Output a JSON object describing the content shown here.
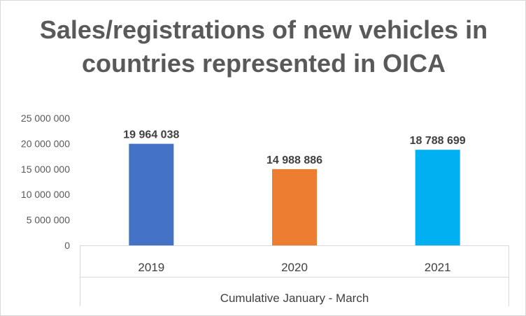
{
  "chart_data": {
    "type": "bar",
    "title_lines": [
      "Sales/registrations of new vehicles in",
      "countries represented in OICA"
    ],
    "categories": [
      "2019",
      "2020",
      "2021"
    ],
    "values": [
      19964038,
      14988886,
      18788699
    ],
    "data_labels": [
      "19 964 038",
      "14 988 886",
      "18 788 699"
    ],
    "bar_colors": [
      "#4472c4",
      "#ed7d31",
      "#00b0f0"
    ],
    "xlabel": "Cumulative January - March",
    "ylabel": "",
    "ylim": [
      0,
      25000000
    ],
    "y_ticks": [
      0,
      5000000,
      10000000,
      15000000,
      20000000,
      25000000
    ],
    "y_tick_labels": [
      "0",
      "5 000 000",
      "10 000 000",
      "15 000 000",
      "20 000 000",
      "25 000 000"
    ],
    "grid": false,
    "legend": "none"
  }
}
